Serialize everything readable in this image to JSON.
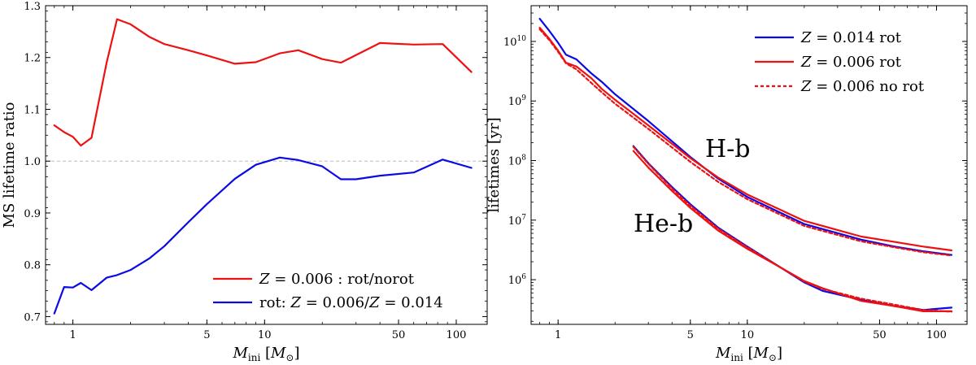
{
  "colors": {
    "red": "#ee1111",
    "blue": "#0a0ae6",
    "ref": "#bbbbbb"
  },
  "chart_data": [
    {
      "type": "line",
      "xscale": "log",
      "xlim": [
        0.72,
        145
      ],
      "ylim": [
        0.685,
        1.3
      ],
      "xlabel": {
        "sym": "M",
        "sub": "ini",
        "unit_open": " [",
        "unit_sym": "M",
        "unit_sub": "⊙",
        "unit_close": "]"
      },
      "ylabel": "MS lifetime ratio",
      "xticks": [
        {
          "v": 1,
          "label": "1"
        },
        {
          "v": 5,
          "label": "5"
        },
        {
          "v": 10,
          "label": "10"
        },
        {
          "v": 50,
          "label": "50"
        },
        {
          "v": 100,
          "label": "100"
        }
      ],
      "yticks": [
        {
          "v": 0.7,
          "label": "0.7"
        },
        {
          "v": 0.8,
          "label": "0.8"
        },
        {
          "v": 0.9,
          "label": "0.9"
        },
        {
          "v": 1.0,
          "label": "1.0"
        },
        {
          "v": 1.1,
          "label": "1.1"
        },
        {
          "v": 1.2,
          "label": "1.2"
        },
        {
          "v": 1.3,
          "label": "1.3"
        }
      ],
      "reference_line": 1.0,
      "legend_position": "lower-right",
      "series": [
        {
          "name": "Z = 0.006 : rot/norot",
          "legend": {
            "sym": "Z",
            "text": " = 0.006 : rot/norot"
          },
          "color": "red",
          "x": [
            0.8,
            0.9,
            1.0,
            1.1,
            1.25,
            1.5,
            1.7,
            2.0,
            2.5,
            3.0,
            4.0,
            5.0,
            7.0,
            9.0,
            12.0,
            15.0,
            20.0,
            25.0,
            40.0,
            60.0,
            85.0,
            120.0
          ],
          "y": [
            1.069,
            1.056,
            1.047,
            1.03,
            1.045,
            1.19,
            1.274,
            1.264,
            1.24,
            1.226,
            1.214,
            1.204,
            1.188,
            1.191,
            1.208,
            1.214,
            1.197,
            1.19,
            1.228,
            1.225,
            1.226,
            1.172
          ]
        },
        {
          "name": "rot: Z = 0.006/Z = 0.014",
          "legend": {
            "pre": "rot: ",
            "sym1": "Z",
            "mid": " = 0.006/",
            "sym2": "Z",
            "post": " = 0.014"
          },
          "color": "blue",
          "x": [
            0.8,
            0.9,
            1.0,
            1.1,
            1.25,
            1.5,
            1.7,
            2.0,
            2.5,
            3.0,
            4.0,
            5.0,
            7.0,
            9.0,
            12.0,
            15.0,
            20.0,
            25.0,
            30.0,
            40.0,
            60.0,
            85.0,
            120.0
          ],
          "y": [
            0.706,
            0.757,
            0.756,
            0.765,
            0.751,
            0.775,
            0.78,
            0.79,
            0.812,
            0.836,
            0.882,
            0.917,
            0.966,
            0.993,
            1.007,
            1.002,
            0.99,
            0.965,
            0.965,
            0.972,
            0.978,
            1.003,
            0.987
          ]
        }
      ]
    },
    {
      "type": "line",
      "xscale": "log",
      "yscale": "log",
      "xlim": [
        0.72,
        145
      ],
      "ylim_log10": [
        5.25,
        10.6
      ],
      "xlabel": {
        "sym": "M",
        "sub": "ini",
        "unit_open": " [",
        "unit_sym": "M",
        "unit_sub": "⊙",
        "unit_close": "]"
      },
      "ylabel": "lifetimes [yr]",
      "xticks": [
        {
          "v": 1,
          "label": "1"
        },
        {
          "v": 5,
          "label": "5"
        },
        {
          "v": 10,
          "label": "10"
        },
        {
          "v": 50,
          "label": "50"
        },
        {
          "v": 100,
          "label": "100"
        }
      ],
      "yticks": [
        {
          "e": 6,
          "base": "10",
          "exp": "6"
        },
        {
          "e": 7,
          "base": "10",
          "exp": "7"
        },
        {
          "e": 8,
          "base": "10",
          "exp": "8"
        },
        {
          "e": 9,
          "base": "10",
          "exp": "9"
        },
        {
          "e": 10,
          "base": "10",
          "exp": "10"
        }
      ],
      "legend_position": "top-right",
      "legend": [
        {
          "sym": "Z",
          "text": " = 0.014 rot",
          "color": "blue",
          "dash": false
        },
        {
          "sym": "Z",
          "text": " = 0.006 rot",
          "color": "red",
          "dash": false
        },
        {
          "sym": "Z",
          "text": " = 0.006 no rot",
          "color": "red",
          "dash": true
        }
      ],
      "annotations": [
        "H-b",
        "He-b"
      ],
      "series": [
        {
          "name": "H-b Z = 0.014 rot",
          "color": "blue",
          "dash": false,
          "x": [
            0.8,
            0.9,
            1.0,
            1.1,
            1.25,
            1.5,
            1.7,
            2.0,
            3.0,
            5.0,
            7.0,
            10.0,
            20.0,
            40.0,
            60.0,
            85.0,
            120.0
          ],
          "y": [
            24000000000.0,
            15000000000.0,
            9500000000.0,
            6000000000.0,
            5000000000.0,
            2900000000.0,
            2100000000.0,
            1300000000.0,
            460000000.0,
            115000000.0,
            50000000.0,
            24500000.0,
            8600000.0,
            4700000.0,
            3600000.0,
            3000000.0,
            2600000.0
          ]
        },
        {
          "name": "H-b Z = 0.006 rot",
          "color": "red",
          "dash": false,
          "x": [
            0.8,
            0.9,
            1.0,
            1.1,
            1.25,
            1.5,
            1.7,
            2.0,
            3.0,
            5.0,
            7.0,
            10.0,
            20.0,
            40.0,
            60.0,
            85.0,
            120.0
          ],
          "y": [
            17000000000.0,
            11000000000.0,
            7000000000.0,
            4400000000.0,
            3800000000.0,
            2400000000.0,
            1600000000.0,
            1050000000.0,
            390000000.0,
            110000000.0,
            52000000.0,
            27000000.0,
            9700000.0,
            5300000.0,
            4300000.0,
            3600000.0,
            3100000.0
          ]
        },
        {
          "name": "H-b Z = 0.006 no rot",
          "color": "red",
          "dash": true,
          "x": [
            0.8,
            0.9,
            1.0,
            1.1,
            1.25,
            1.5,
            1.7,
            2.0,
            3.0,
            5.0,
            7.0,
            10.0,
            20.0,
            40.0,
            60.0,
            85.0,
            120.0
          ],
          "y": [
            16000000000.0,
            10500000000.0,
            6700000000.0,
            4300000000.0,
            3400000000.0,
            2000000000.0,
            1400000000.0,
            900000000.0,
            340000000.0,
            95000000.0,
            44000000.0,
            22500000.0,
            8000000.0,
            4400000.0,
            3500000.0,
            2900000.0,
            2550000.0
          ]
        },
        {
          "name": "He-b Z = 0.014 rot",
          "color": "blue",
          "dash": false,
          "x": [
            2.5,
            3.0,
            4.0,
            5.0,
            7.0,
            10.0,
            15.0,
            20.0,
            25.0,
            40.0,
            60.0,
            85.0,
            120.0
          ],
          "y": [
            175000000.0,
            90000000.0,
            36000000.0,
            18500000.0,
            7500000.0,
            3600000.0,
            1600000.0,
            900000.0,
            650000.0,
            460000.0,
            360000.0,
            310000.0,
            340000.0
          ]
        },
        {
          "name": "He-b Z = 0.006 rot",
          "color": "red",
          "dash": false,
          "x": [
            2.5,
            3.0,
            4.0,
            5.0,
            7.0,
            10.0,
            15.0,
            20.0,
            25.0,
            40.0,
            60.0,
            85.0,
            120.0
          ],
          "y": [
            145000000.0,
            76000000.0,
            31000000.0,
            16000000.0,
            6700000.0,
            3300000.0,
            1600000.0,
            950000.0,
            720000.0,
            440000.0,
            360000.0,
            295000.0,
            295000.0
          ]
        },
        {
          "name": "He-b Z = 0.006 no rot",
          "color": "red",
          "dash": true,
          "x": [
            2.5,
            3.0,
            4.0,
            5.0,
            7.0,
            10.0,
            15.0,
            20.0,
            25.0,
            40.0,
            60.0,
            85.0,
            120.0
          ],
          "y": [
            170000000.0,
            88000000.0,
            34000000.0,
            17500000.0,
            7200000.0,
            3500000.0,
            1600000.0,
            930000.0,
            700000.0,
            480000.0,
            380000.0,
            310000.0,
            290000.0
          ]
        }
      ]
    }
  ]
}
